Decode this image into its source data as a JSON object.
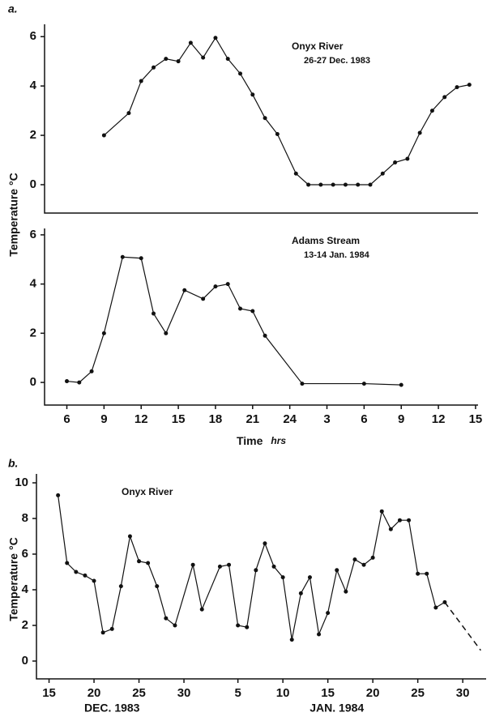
{
  "chart_data": [
    {
      "type": "line",
      "panel_label": "a.",
      "ylabel": "Temperature °C",
      "title": "Onyx River",
      "subtitle": "26-27 Dec. 1983",
      "xlim": [
        4.2,
        39.2
      ],
      "ylim": [
        -1.15,
        6.5
      ],
      "yticks": [
        0,
        2,
        4,
        6
      ],
      "color": "#111111",
      "x": [
        9,
        11,
        12,
        13,
        14,
        15,
        16,
        17,
        18,
        19,
        20,
        21,
        22,
        23,
        24.5,
        25.5,
        26.5,
        27.5,
        28.5,
        29.5,
        30.5,
        31.5,
        32.5,
        33.5,
        34.5,
        35.5,
        36.5,
        37.5,
        38.5
      ],
      "values": [
        2.0,
        2.9,
        4.2,
        4.75,
        5.1,
        5.0,
        5.75,
        5.15,
        5.95,
        5.1,
        4.5,
        3.65,
        2.7,
        2.05,
        0.45,
        0,
        0,
        0,
        0,
        0,
        0,
        0.45,
        0.9,
        1.05,
        2.1,
        3.0,
        3.55,
        3.95,
        4.05
      ]
    },
    {
      "type": "line",
      "title": "Adams Stream",
      "subtitle": "13-14 Jan. 1984",
      "xlabel": "Time",
      "xlabel_unit": "hrs",
      "xlim": [
        4.2,
        39.2
      ],
      "ylim": [
        -0.92,
        6.26
      ],
      "yticks": [
        0,
        2,
        4,
        6
      ],
      "color": "#111111",
      "xticks": [
        6,
        9,
        12,
        15,
        18,
        21,
        24,
        {
          "value": 27,
          "label": "3"
        },
        {
          "value": 30,
          "label": "6"
        },
        {
          "value": 33,
          "label": "9"
        },
        {
          "value": 36,
          "label": "12"
        },
        {
          "value": 39,
          "label": "15"
        }
      ],
      "x": [
        6,
        7,
        8,
        9,
        10.5,
        12,
        13,
        14,
        15.5,
        17,
        18,
        19,
        20,
        21,
        22,
        25,
        30,
        33
      ],
      "values": [
        0.05,
        0.0,
        0.45,
        2.0,
        5.1,
        5.05,
        2.8,
        2.0,
        3.75,
        3.4,
        3.9,
        4.0,
        3.0,
        2.9,
        1.9,
        -0.05,
        -0.05,
        -0.1
      ]
    },
    {
      "type": "line",
      "panel_label": "b.",
      "ylabel": "Temperature °C",
      "title": "Onyx River",
      "xlim": [
        13.6,
        63.6
      ],
      "ylim": [
        -1,
        10.5
      ],
      "yticks": [
        0,
        2,
        4,
        6,
        8,
        10
      ],
      "color": "#111111",
      "xticks": [
        15,
        20,
        25,
        30,
        {
          "value": 36,
          "label": "5"
        },
        {
          "value": 41,
          "label": "10"
        },
        {
          "value": 46,
          "label": "15"
        },
        {
          "value": 51,
          "label": "20"
        },
        {
          "value": 56,
          "label": "25"
        },
        {
          "value": 61,
          "label": "30"
        }
      ],
      "annotations": [
        {
          "text": "DEC. 1983",
          "x": 22
        },
        {
          "text": "JAN. 1984",
          "x": 47
        }
      ],
      "x": [
        16,
        17,
        18,
        19,
        20,
        21,
        22,
        23,
        24,
        25,
        26,
        27,
        28,
        29,
        31,
        32,
        34,
        35,
        36,
        37,
        38,
        39,
        40,
        41,
        42,
        43,
        44,
        45,
        46,
        47,
        48,
        49,
        50,
        51,
        52,
        53,
        54,
        55,
        56,
        57,
        58,
        59
      ],
      "values": [
        9.3,
        5.5,
        5.0,
        4.8,
        4.5,
        1.6,
        1.8,
        4.2,
        7.0,
        5.6,
        5.5,
        4.2,
        2.4,
        2.0,
        5.4,
        2.9,
        5.3,
        5.4,
        2.0,
        1.9,
        5.1,
        6.6,
        5.3,
        4.7,
        1.2,
        3.8,
        4.7,
        1.5,
        2.7,
        5.1,
        3.9,
        5.7,
        5.4,
        5.8,
        8.4,
        7.4,
        7.9,
        7.9,
        4.9,
        4.9,
        3.0,
        3.3
      ],
      "extrapolation": {
        "x": [
          59,
          63
        ],
        "values": [
          3.3,
          0.6
        ]
      }
    }
  ]
}
